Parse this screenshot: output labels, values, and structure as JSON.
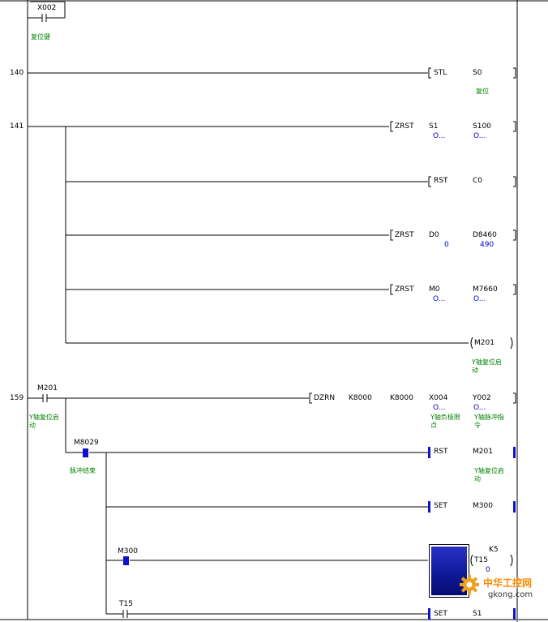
{
  "window": {
    "title": ""
  },
  "rungs": [
    {
      "step": "",
      "contacts": [
        {
          "device": "X002",
          "comment": "复位键"
        }
      ]
    },
    {
      "step": "140",
      "instruction": {
        "op": "STL",
        "operands": [
          "S0"
        ],
        "comment": "复位"
      }
    },
    {
      "step": "141",
      "instructions": [
        {
          "op": "ZRST",
          "operands": [
            "S1",
            "S100"
          ],
          "values": [
            "O...",
            "O..."
          ]
        },
        {
          "op": "RST",
          "operands": [
            "C0"
          ]
        },
        {
          "op": "ZRST",
          "operands": [
            "D0",
            "D8460"
          ],
          "values": [
            "0",
            "490"
          ]
        },
        {
          "op": "ZRST",
          "operands": [
            "M0",
            "M7660"
          ],
          "values": [
            "O...",
            "O..."
          ]
        }
      ],
      "coil": {
        "device": "M201",
        "comment": "Y轴复位启动"
      }
    },
    {
      "step": "159",
      "contact": {
        "device": "M201",
        "comment": "Y轴复位启动"
      },
      "instruction": {
        "op": "DZRN",
        "operands": [
          "K8000",
          "K8000",
          "X004",
          "Y002"
        ],
        "values": [
          "O...",
          "O..."
        ],
        "comments": [
          "Y轴负极限点",
          "Y轴脉冲指令"
        ]
      },
      "branches": [
        {
          "contact": {
            "device": "M8029",
            "comment": "脉冲结束"
          },
          "instruction": {
            "op": "RST",
            "operand": "M201",
            "comment": "Y轴复位启动"
          }
        },
        {
          "instruction": {
            "op": "SET",
            "operand": "M300"
          }
        },
        {
          "contact": {
            "device": "M300"
          },
          "timer": {
            "device": "T15",
            "preset": "K5",
            "value": "0"
          }
        },
        {
          "contact": {
            "device": "T15"
          },
          "instruction": {
            "op": "SET",
            "operand": "S1"
          }
        }
      ]
    }
  ],
  "watermark": {
    "site_cn": "中华工控网",
    "url": "gkong.com"
  },
  "colors": {
    "comment": "#008000",
    "value": "#0000cc",
    "marker": "#1010d0",
    "line": "#000000",
    "border": "#808080"
  }
}
